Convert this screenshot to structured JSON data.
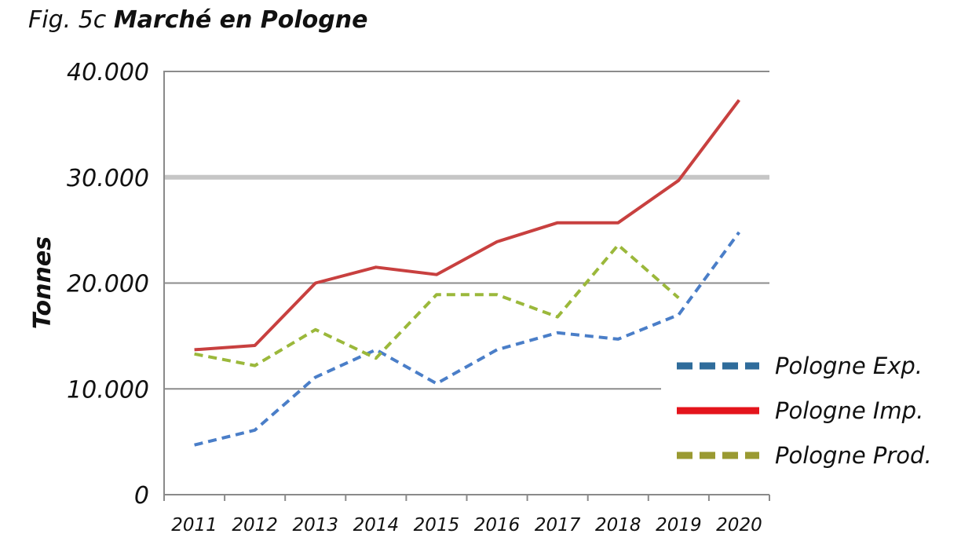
{
  "figure": {
    "prefix": "Fig. 5c ",
    "title": "Marché en Pologne"
  },
  "chart_data": {
    "type": "line",
    "title": "Marché en Pologne",
    "xlabel": "",
    "ylabel": "Tonnes",
    "categories": [
      "2011",
      "2012",
      "2013",
      "2014",
      "2015",
      "2016",
      "2017",
      "2018",
      "2019",
      "2020"
    ],
    "ylim": [
      0,
      40000
    ],
    "yticks": [
      0,
      10000,
      20000,
      30000,
      40000
    ],
    "ytick_labels": [
      "0",
      "10.000",
      "20.000",
      "30.000",
      "40.000"
    ],
    "grid": true,
    "legend_position": "right",
    "series": [
      {
        "name": "Pologne Exp.",
        "color": "#4a7ec8",
        "legend_color": "#2f6c9b",
        "style": "dashed",
        "values": [
          4700,
          6100,
          11100,
          13700,
          10500,
          13700,
          15300,
          14700,
          17000,
          24800
        ]
      },
      {
        "name": "Pologne Imp.",
        "color": "#c8403f",
        "legend_color": "#e4141c",
        "style": "solid",
        "values": [
          13700,
          14100,
          20000,
          21500,
          20800,
          23900,
          25700,
          25700,
          29700,
          37300
        ]
      },
      {
        "name": "Pologne Prod.",
        "color": "#9bb83b",
        "legend_color": "#9a9a32",
        "style": "dashed",
        "values": [
          13300,
          12200,
          15600,
          12900,
          18900,
          18900,
          16800,
          23600,
          18600,
          null
        ]
      }
    ]
  }
}
